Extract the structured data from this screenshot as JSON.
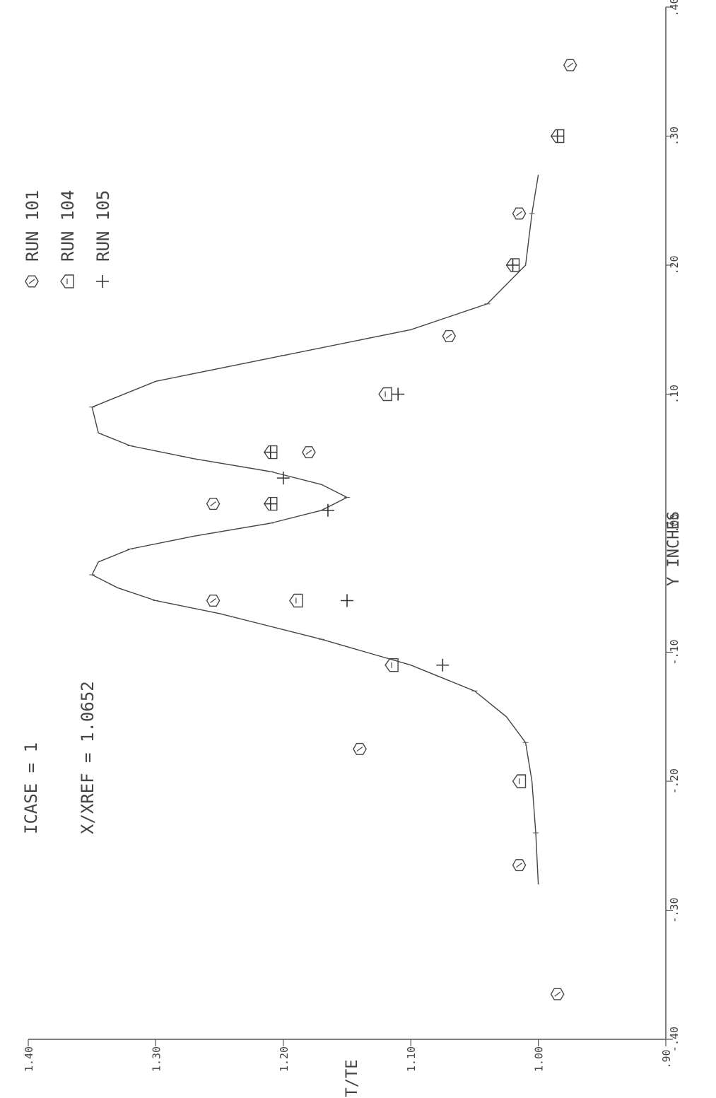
{
  "chart_data": {
    "type": "scatter",
    "x_label": "Y INCHES",
    "y_label": "T/TE",
    "xlim": [
      -0.4,
      0.4
    ],
    "ylim": [
      0.9,
      1.4
    ],
    "x_ticks": [
      -0.4,
      -0.3,
      -0.2,
      -0.1,
      0.0,
      0.1,
      0.2,
      0.3,
      0.4
    ],
    "x_tick_labels": [
      "-.40",
      "-.30",
      "-.20",
      "-.10",
      ".00",
      ".10",
      ".20",
      ".30",
      ".40"
    ],
    "y_ticks": [
      0.9,
      1.0,
      1.1,
      1.2,
      1.3,
      1.4
    ],
    "y_tick_labels": [
      ".90",
      "1.00",
      "1.10",
      "1.20",
      "1.30",
      "1.40"
    ],
    "annotations": [
      "ICASE = 1",
      "X/XREF = 1.0652"
    ],
    "legend_position": "top-right",
    "series": [
      {
        "name": "RUN 101",
        "marker": "hexagon",
        "points": [
          {
            "x": -0.365,
            "y": 0.985
          },
          {
            "x": -0.265,
            "y": 1.015
          },
          {
            "x": -0.175,
            "y": 1.14
          },
          {
            "x": -0.06,
            "y": 1.255
          },
          {
            "x": 0.015,
            "y": 1.255
          },
          {
            "x": 0.055,
            "y": 1.18
          },
          {
            "x": 0.145,
            "y": 1.07
          },
          {
            "x": 0.24,
            "y": 1.015
          },
          {
            "x": 0.355,
            "y": 0.975
          }
        ]
      },
      {
        "name": "RUN 104",
        "marker": "house",
        "points": [
          {
            "x": -0.2,
            "y": 1.015
          },
          {
            "x": -0.11,
            "y": 1.115
          },
          {
            "x": -0.06,
            "y": 1.19
          },
          {
            "x": 0.015,
            "y": 1.21
          },
          {
            "x": 0.055,
            "y": 1.21
          },
          {
            "x": 0.1,
            "y": 1.12
          },
          {
            "x": 0.2,
            "y": 1.02
          },
          {
            "x": 0.3,
            "y": 0.985
          }
        ]
      },
      {
        "name": "RUN 105",
        "marker": "plus",
        "points": [
          {
            "x": -0.11,
            "y": 1.075
          },
          {
            "x": -0.06,
            "y": 1.15
          },
          {
            "x": 0.01,
            "y": 1.165
          },
          {
            "x": 0.015,
            "y": 1.21
          },
          {
            "x": 0.035,
            "y": 1.2
          },
          {
            "x": 0.055,
            "y": 1.21
          },
          {
            "x": 0.1,
            "y": 1.11
          },
          {
            "x": 0.2,
            "y": 1.02
          },
          {
            "x": 0.3,
            "y": 0.985
          }
        ]
      }
    ],
    "curve": {
      "x": [
        -0.28,
        -0.24,
        -0.2,
        -0.17,
        -0.15,
        -0.13,
        -0.11,
        -0.09,
        -0.07,
        -0.06,
        -0.05,
        -0.04,
        -0.03,
        -0.02,
        -0.01,
        0.0,
        0.01,
        0.02,
        0.03,
        0.04,
        0.05,
        0.06,
        0.07,
        0.09,
        0.11,
        0.13,
        0.15,
        0.17,
        0.2,
        0.24,
        0.27
      ],
      "y": [
        1.0,
        1.002,
        1.005,
        1.01,
        1.025,
        1.05,
        1.1,
        1.17,
        1.25,
        1.3,
        1.33,
        1.35,
        1.345,
        1.32,
        1.27,
        1.21,
        1.17,
        1.15,
        1.17,
        1.21,
        1.27,
        1.32,
        1.345,
        1.35,
        1.3,
        1.2,
        1.1,
        1.04,
        1.01,
        1.005,
        1.0
      ]
    }
  }
}
